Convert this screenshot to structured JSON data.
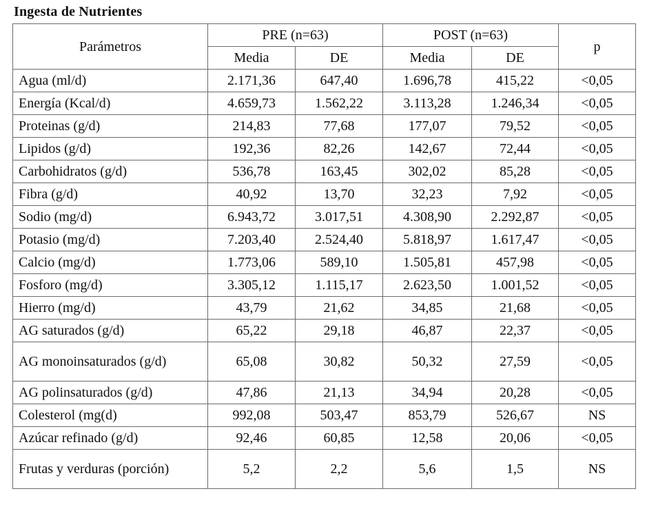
{
  "title": "Ingesta de Nutrientes",
  "header": {
    "param": "Parámetros",
    "pre": "PRE (n=63)",
    "post": "POST (n=63)",
    "p": "p",
    "mean": "Media",
    "sd": "DE"
  },
  "rows": [
    {
      "name": "Agua (ml/d)",
      "pre_mean": "2.171,36",
      "pre_sd": "647,40",
      "post_mean": "1.696,78",
      "post_sd": "415,22",
      "p": "<0,05"
    },
    {
      "name": "Energía (Kcal/d)",
      "pre_mean": "4.659,73",
      "pre_sd": "1.562,22",
      "post_mean": "3.113,28",
      "post_sd": "1.246,34",
      "p": "<0,05"
    },
    {
      "name": "Proteinas (g/d)",
      "pre_mean": "214,83",
      "pre_sd": "77,68",
      "post_mean": "177,07",
      "post_sd": "79,52",
      "p": "<0,05"
    },
    {
      "name": "Lipidos (g/d)",
      "pre_mean": "192,36",
      "pre_sd": "82,26",
      "post_mean": "142,67",
      "post_sd": "72,44",
      "p": "<0,05"
    },
    {
      "name": "Carbohidratos (g/d)",
      "pre_mean": "536,78",
      "pre_sd": "163,45",
      "post_mean": "302,02",
      "post_sd": "85,28",
      "p": "<0,05"
    },
    {
      "name": "Fibra (g/d)",
      "pre_mean": "40,92",
      "pre_sd": "13,70",
      "post_mean": "32,23",
      "post_sd": "7,92",
      "p": "<0,05"
    },
    {
      "name": "Sodio (mg/d)",
      "pre_mean": "6.943,72",
      "pre_sd": "3.017,51",
      "post_mean": "4.308,90",
      "post_sd": "2.292,87",
      "p": "<0,05"
    },
    {
      "name": "Potasio (mg/d)",
      "pre_mean": "7.203,40",
      "pre_sd": "2.524,40",
      "post_mean": "5.818,97",
      "post_sd": "1.617,47",
      "p": "<0,05"
    },
    {
      "name": "Calcio (mg/d)",
      "pre_mean": "1.773,06",
      "pre_sd": "589,10",
      "post_mean": "1.505,81",
      "post_sd": "457,98",
      "p": "<0,05"
    },
    {
      "name": "Fosforo (mg/d)",
      "pre_mean": "3.305,12",
      "pre_sd": "1.115,17",
      "post_mean": "2.623,50",
      "post_sd": "1.001,52",
      "p": "<0,05"
    },
    {
      "name": "Hierro (mg/d)",
      "pre_mean": "43,79",
      "pre_sd": "21,62",
      "post_mean": "34,85",
      "post_sd": "21,68",
      "p": "<0,05"
    },
    {
      "name": "AG saturados (g/d)",
      "pre_mean": "65,22",
      "pre_sd": "29,18",
      "post_mean": "46,87",
      "post_sd": "22,37",
      "p": "<0,05"
    },
    {
      "name": "AG monoinsaturados (g/d)",
      "pre_mean": "65,08",
      "pre_sd": "30,82",
      "post_mean": "50,32",
      "post_sd": "27,59",
      "p": "<0,05"
    },
    {
      "name": "AG polinsaturados (g/d)",
      "pre_mean": "47,86",
      "pre_sd": "21,13",
      "post_mean": "34,94",
      "post_sd": "20,28",
      "p": "<0,05"
    },
    {
      "name": "Colesterol (mg(d)",
      "pre_mean": "992,08",
      "pre_sd": "503,47",
      "post_mean": "853,79",
      "post_sd": "526,67",
      "p": "NS"
    },
    {
      "name": "Azúcar refinado (g/d)",
      "pre_mean": "92,46",
      "pre_sd": "60,85",
      "post_mean": "12,58",
      "post_sd": "20,06",
      "p": "<0,05"
    },
    {
      "name": "Frutas y verduras (porción)",
      "pre_mean": "5,2",
      "pre_sd": "2,2",
      "post_mean": "5,6",
      "post_sd": "1,5",
      "p": "NS"
    }
  ]
}
